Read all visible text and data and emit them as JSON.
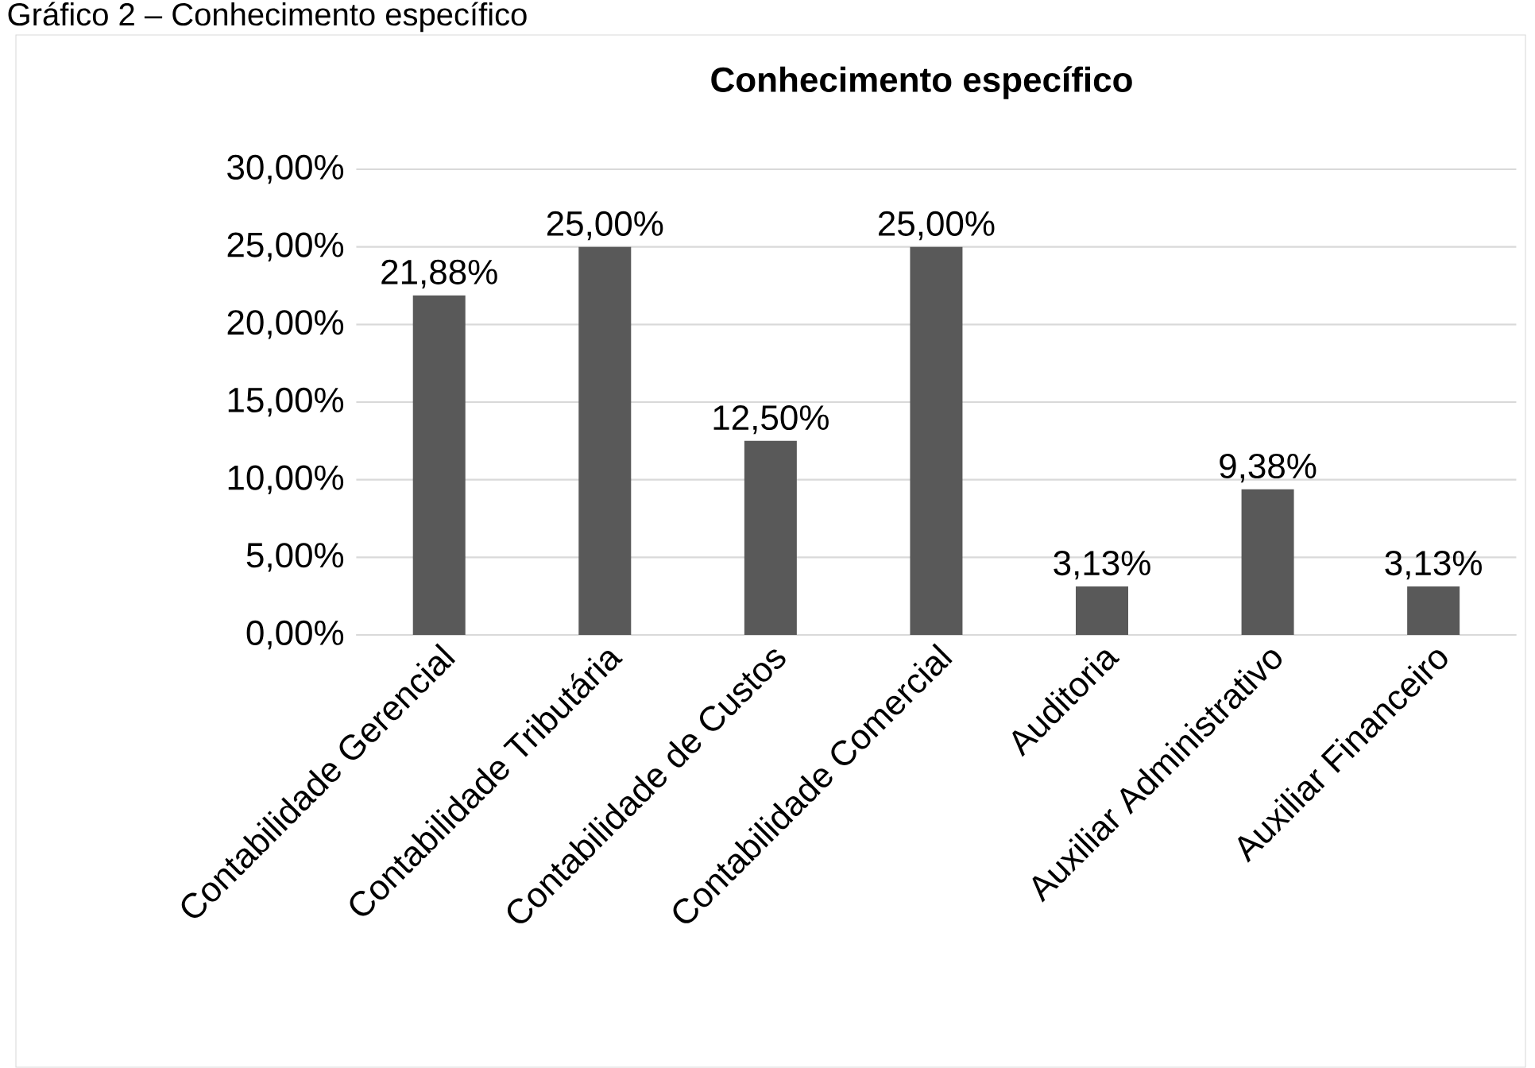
{
  "chart_data": {
    "type": "bar",
    "title": "Conhecimento específico",
    "annotations": [
      "Gráfico 2 – Conhecimento específico"
    ],
    "categories": [
      "Contabilidade Gerencial",
      "Contabilidade Tributária",
      "Contabilidade de Custos",
      "Contabilidade Comercial",
      "Auditoria",
      "Auxiliar Administrativo",
      "Auxiliar Financeiro"
    ],
    "values": [
      21.88,
      25,
      12.5,
      25,
      3.13,
      9.38,
      3.13
    ],
    "value_labels": [
      "21,88%",
      "25,00%",
      "12,50%",
      "25,00%",
      "3,13%",
      "9,38%",
      "3,13%"
    ],
    "color": "#595959",
    "ylim": [
      0,
      30
    ],
    "yticks": [
      {
        "value": 0,
        "label": "0,00%"
      },
      {
        "value": 5,
        "label": "5,00%"
      },
      {
        "value": 10,
        "label": "10,00%"
      },
      {
        "value": 15,
        "label": "15,00%"
      },
      {
        "value": 20,
        "label": "20,00%"
      },
      {
        "value": 25,
        "label": "25,00%"
      },
      {
        "value": 30,
        "label": "30,00%"
      }
    ],
    "grid": "y"
  }
}
